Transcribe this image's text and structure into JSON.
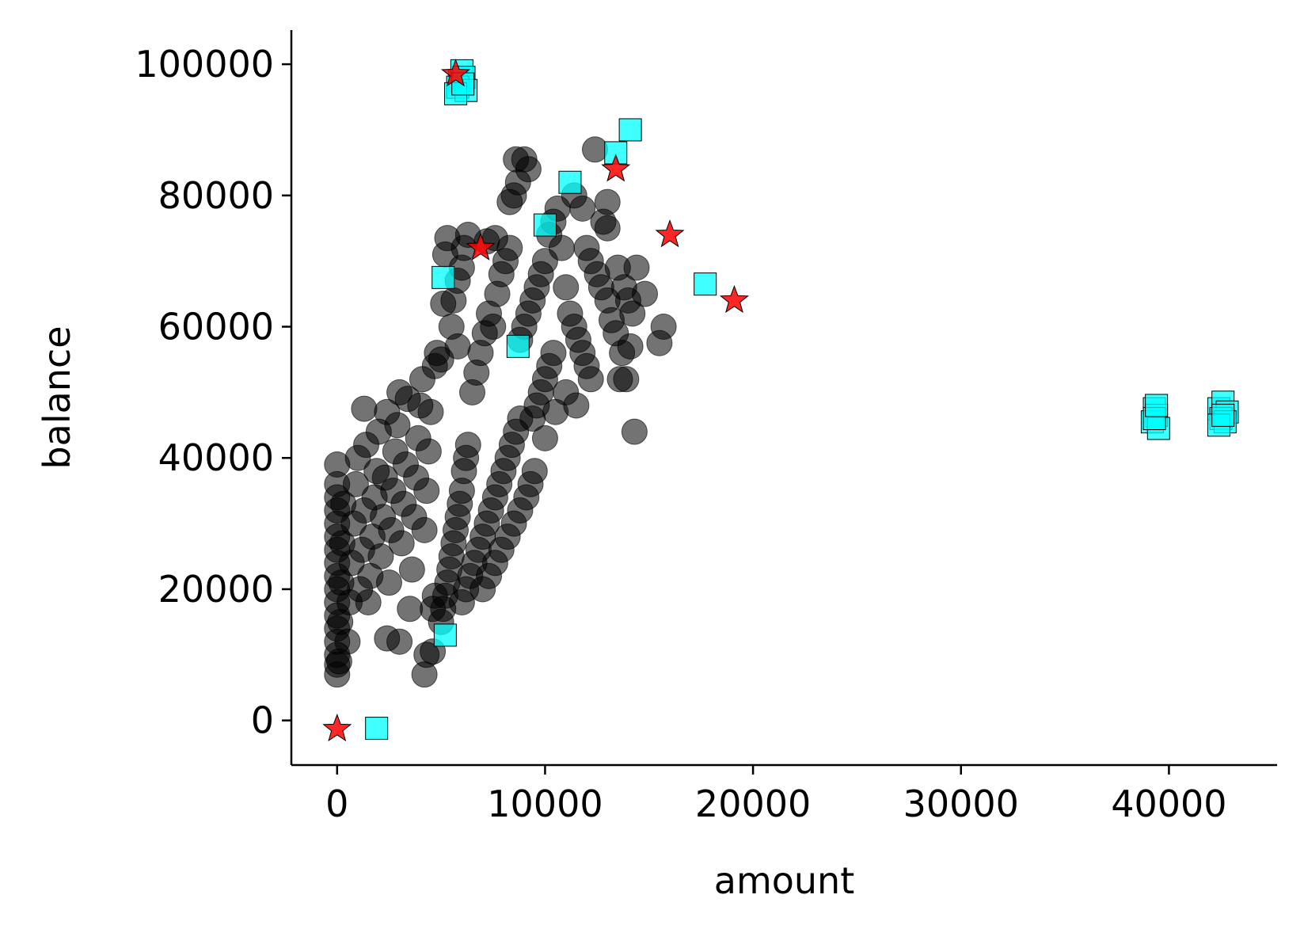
{
  "chart_data": {
    "type": "scatter",
    "xlabel": "amount",
    "ylabel": "balance",
    "xlim": [
      -2200,
      45200
    ],
    "ylim": [
      -6800,
      105200
    ],
    "xticks": [
      0,
      10000,
      20000,
      30000,
      40000
    ],
    "yticks": [
      0,
      20000,
      40000,
      60000,
      80000,
      100000
    ],
    "x_tick_labels": [
      "0",
      "10000",
      "20000",
      "30000",
      "40000"
    ],
    "y_tick_labels": [
      "0",
      "20000",
      "40000",
      "60000",
      "80000",
      "100000"
    ],
    "grid": false,
    "legend": "none",
    "series": [
      {
        "marker": "circle",
        "color": "#000000",
        "opacity": 0.55,
        "points": [
          [
            0,
            7000
          ],
          [
            0,
            8500
          ],
          [
            0,
            10000
          ],
          [
            0,
            12000
          ],
          [
            0,
            14000
          ],
          [
            0,
            16000
          ],
          [
            0,
            18000
          ],
          [
            0,
            20000
          ],
          [
            0,
            22000
          ],
          [
            0,
            24000
          ],
          [
            0,
            26000
          ],
          [
            0,
            28000
          ],
          [
            0,
            30000
          ],
          [
            0,
            32000
          ],
          [
            0,
            34000
          ],
          [
            0,
            36000
          ],
          [
            0,
            39000
          ],
          [
            100,
            9000
          ],
          [
            150,
            15000
          ],
          [
            200,
            21000
          ],
          [
            250,
            27000
          ],
          [
            300,
            33000
          ],
          [
            500,
            12000
          ],
          [
            600,
            18000
          ],
          [
            700,
            24000
          ],
          [
            800,
            30000
          ],
          [
            900,
            36000
          ],
          [
            1000,
            40000
          ],
          [
            1100,
            20000
          ],
          [
            1200,
            26000
          ],
          [
            1300,
            32000
          ],
          [
            1400,
            42000
          ],
          [
            1500,
            18000
          ],
          [
            1600,
            22000
          ],
          [
            1700,
            28000
          ],
          [
            1800,
            34000
          ],
          [
            1900,
            38000
          ],
          [
            2000,
            44000
          ],
          [
            2100,
            25000
          ],
          [
            2200,
            31000
          ],
          [
            2300,
            37000
          ],
          [
            2400,
            47000
          ],
          [
            1300,
            47500
          ],
          [
            2500,
            21000
          ],
          [
            2600,
            29000
          ],
          [
            2700,
            35000
          ],
          [
            2800,
            41000
          ],
          [
            2900,
            45000
          ],
          [
            3000,
            50000
          ],
          [
            3100,
            27000
          ],
          [
            3200,
            33000
          ],
          [
            3300,
            39000
          ],
          [
            3400,
            49000
          ],
          [
            2400,
            12500
          ],
          [
            3000,
            12000
          ],
          [
            3500,
            17000
          ],
          [
            3600,
            23000
          ],
          [
            3700,
            31000
          ],
          [
            3800,
            37000
          ],
          [
            3900,
            43000
          ],
          [
            4000,
            48000
          ],
          [
            4100,
            52000
          ],
          [
            4200,
            29000
          ],
          [
            4300,
            35000
          ],
          [
            4400,
            41000
          ],
          [
            4500,
            47000
          ],
          [
            4200,
            7000
          ],
          [
            4300,
            10000
          ],
          [
            4600,
            10500
          ],
          [
            4700,
            54000
          ],
          [
            4800,
            56000
          ],
          [
            4600,
            17000
          ],
          [
            4700,
            19000
          ],
          [
            5000,
            15000
          ],
          [
            5100,
            17000
          ],
          [
            5200,
            19000
          ],
          [
            5300,
            21000
          ],
          [
            5400,
            23000
          ],
          [
            5500,
            25000
          ],
          [
            5600,
            27000
          ],
          [
            5700,
            29000
          ],
          [
            5800,
            31000
          ],
          [
            5900,
            33000
          ],
          [
            6000,
            35000
          ],
          [
            6100,
            38000
          ],
          [
            6200,
            40000
          ],
          [
            6300,
            42000
          ],
          [
            5000,
            55000
          ],
          [
            5100,
            63500
          ],
          [
            5200,
            71000
          ],
          [
            5300,
            73500
          ],
          [
            5500,
            60000
          ],
          [
            5600,
            64000
          ],
          [
            5800,
            67000
          ],
          [
            6000,
            69000
          ],
          [
            6100,
            72000
          ],
          [
            6300,
            74000
          ],
          [
            5800,
            57000
          ],
          [
            6000,
            18000
          ],
          [
            6200,
            20000
          ],
          [
            6400,
            22000
          ],
          [
            6600,
            24000
          ],
          [
            6800,
            26000
          ],
          [
            7000,
            28000
          ],
          [
            7200,
            30000
          ],
          [
            7400,
            32000
          ],
          [
            7600,
            34000
          ],
          [
            7800,
            36000
          ],
          [
            8000,
            38000
          ],
          [
            8200,
            40000
          ],
          [
            8400,
            42000
          ],
          [
            8600,
            44000
          ],
          [
            8800,
            46000
          ],
          [
            6500,
            50000
          ],
          [
            6700,
            53000
          ],
          [
            6900,
            56000
          ],
          [
            7100,
            59000
          ],
          [
            7300,
            62000
          ],
          [
            7500,
            60000
          ],
          [
            7700,
            65000
          ],
          [
            7900,
            68000
          ],
          [
            8100,
            70000
          ],
          [
            8300,
            72000
          ],
          [
            7200,
            73000
          ],
          [
            7600,
            73500
          ],
          [
            7000,
            20000
          ],
          [
            7300,
            22000
          ],
          [
            7600,
            24000
          ],
          [
            7900,
            26000
          ],
          [
            8200,
            28000
          ],
          [
            8500,
            30000
          ],
          [
            8800,
            32000
          ],
          [
            9100,
            34000
          ],
          [
            9300,
            36000
          ],
          [
            9500,
            38000
          ],
          [
            8300,
            79000
          ],
          [
            8500,
            80000
          ],
          [
            8700,
            82000
          ],
          [
            8600,
            85500
          ],
          [
            9000,
            85500
          ],
          [
            9200,
            84000
          ],
          [
            8800,
            58000
          ],
          [
            9000,
            60000
          ],
          [
            9200,
            62000
          ],
          [
            9400,
            64000
          ],
          [
            9600,
            66000
          ],
          [
            9800,
            68000
          ],
          [
            9400,
            46000
          ],
          [
            9600,
            48000
          ],
          [
            9800,
            50000
          ],
          [
            10000,
            52000
          ],
          [
            10200,
            54000
          ],
          [
            10400,
            56000
          ],
          [
            10000,
            43000
          ],
          [
            10500,
            47000
          ],
          [
            10000,
            70000
          ],
          [
            10200,
            74000
          ],
          [
            10400,
            76000
          ],
          [
            10600,
            78000
          ],
          [
            10800,
            72000
          ],
          [
            11000,
            66000
          ],
          [
            11200,
            62000
          ],
          [
            11400,
            60000
          ],
          [
            11600,
            58000
          ],
          [
            11800,
            56000
          ],
          [
            12000,
            54000
          ],
          [
            12200,
            52000
          ],
          [
            11000,
            50000
          ],
          [
            11500,
            48000
          ],
          [
            12400,
            87000
          ],
          [
            11400,
            80000
          ],
          [
            11800,
            78000
          ],
          [
            12000,
            72000
          ],
          [
            12200,
            70000
          ],
          [
            12500,
            68000
          ],
          [
            12700,
            66000
          ],
          [
            13000,
            64000
          ],
          [
            13200,
            61000
          ],
          [
            13400,
            59000
          ],
          [
            12800,
            76000
          ],
          [
            13000,
            79000
          ],
          [
            13000,
            75000
          ],
          [
            13500,
            69000
          ],
          [
            13800,
            66000
          ],
          [
            14000,
            64000
          ],
          [
            14200,
            62000
          ],
          [
            13700,
            56000
          ],
          [
            14100,
            57000
          ],
          [
            13600,
            52000
          ],
          [
            13900,
            52000
          ],
          [
            14400,
            69000
          ],
          [
            14800,
            65000
          ],
          [
            15500,
            57500
          ],
          [
            15700,
            60000
          ],
          [
            14300,
            44000
          ]
        ]
      },
      {
        "marker": "square",
        "color": "#00ffff",
        "opacity": 0.75,
        "points": [
          [
            5900,
            97500
          ],
          [
            6000,
            99000
          ],
          [
            6100,
            98000
          ],
          [
            5800,
            96500
          ],
          [
            6200,
            96000
          ],
          [
            5700,
            95500
          ],
          [
            6050,
            97000
          ],
          [
            14100,
            90000
          ],
          [
            13400,
            86500
          ],
          [
            11200,
            82000
          ],
          [
            10000,
            75500
          ],
          [
            5100,
            67500
          ],
          [
            8700,
            57000
          ],
          [
            5200,
            13000
          ],
          [
            1900,
            -1200
          ],
          [
            17700,
            66500
          ],
          [
            39300,
            47500
          ],
          [
            39400,
            46500
          ],
          [
            39200,
            45500
          ],
          [
            39500,
            44500
          ],
          [
            39300,
            46000
          ],
          [
            39400,
            48000
          ],
          [
            42400,
            47500
          ],
          [
            42600,
            48500
          ],
          [
            42800,
            47000
          ],
          [
            42500,
            46000
          ],
          [
            42700,
            45500
          ],
          [
            42400,
            45000
          ],
          [
            42600,
            46500
          ]
        ]
      },
      {
        "marker": "star",
        "color": "#ff0000",
        "opacity": 0.85,
        "points": [
          [
            0,
            -1300
          ],
          [
            6900,
            72000
          ],
          [
            13400,
            84000
          ],
          [
            16000,
            74000
          ],
          [
            19100,
            64000
          ],
          [
            5700,
            98500
          ]
        ]
      }
    ]
  }
}
